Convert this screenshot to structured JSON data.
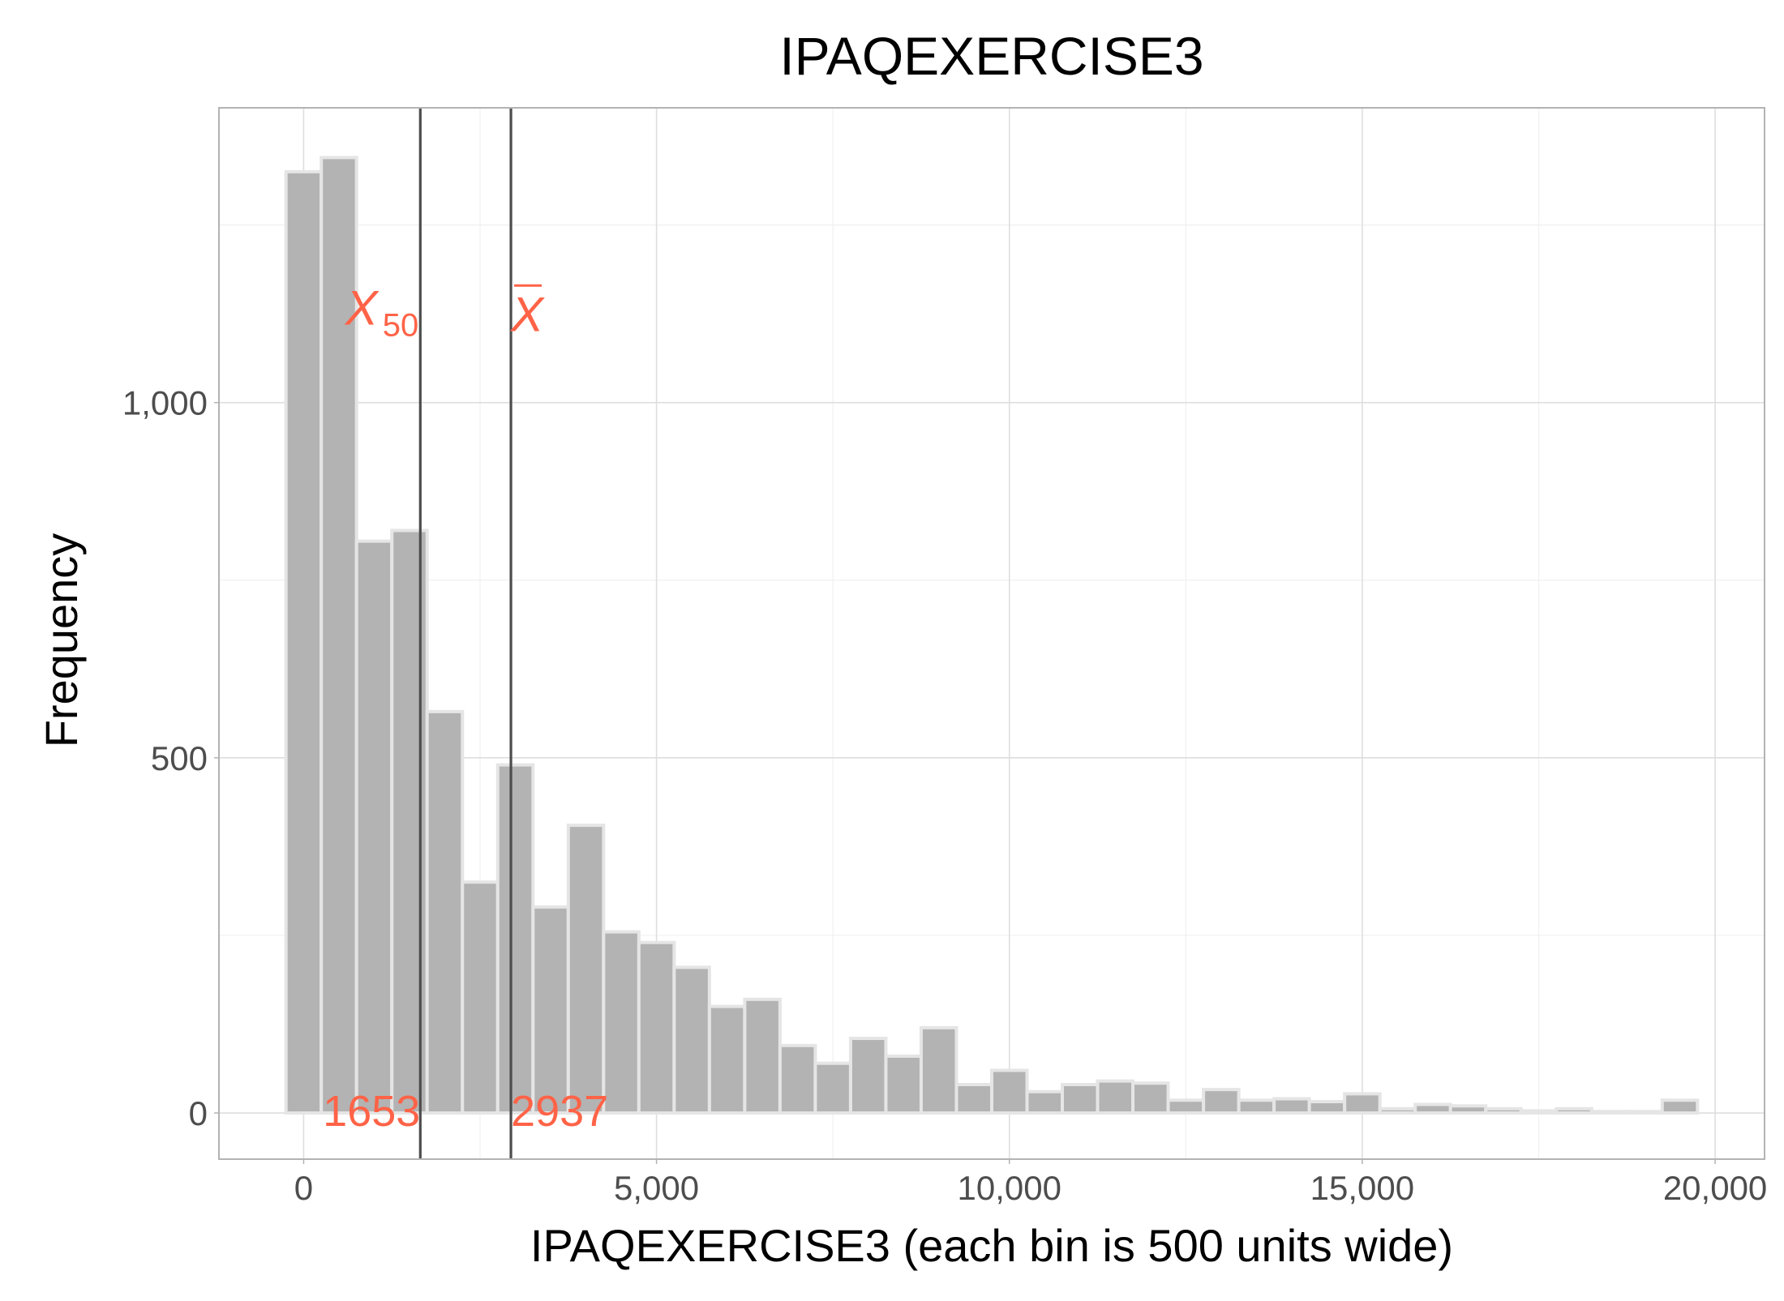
{
  "chart_data": {
    "type": "histogram",
    "title": "IPAQEXERCISE3",
    "xlabel": "IPAQEXERCISE3 (each bin is 500 units wide)",
    "ylabel": "Frequency",
    "bin_width": 500,
    "xlim": [
      -1200,
      20700
    ],
    "ylim": [
      -65,
      1415
    ],
    "x_ticks": [
      0,
      5000,
      10000,
      15000,
      20000
    ],
    "x_tick_labels": [
      "0",
      "5,000",
      "10,000",
      "15,000",
      "20,000"
    ],
    "y_ticks": [
      0,
      500,
      1000
    ],
    "y_tick_labels": [
      "0",
      "500",
      "1,000"
    ],
    "grid": true,
    "bin_centers": [
      0,
      500,
      1000,
      1500,
      2000,
      2500,
      3000,
      3500,
      4000,
      4500,
      5000,
      5500,
      6000,
      6500,
      7000,
      7500,
      8000,
      8500,
      9000,
      9500,
      10000,
      10500,
      11000,
      11500,
      12000,
      12500,
      13000,
      13500,
      14000,
      14500,
      15000,
      15500,
      16000,
      16500,
      17000,
      17500,
      18000,
      18500,
      19000,
      19500
    ],
    "values": [
      1325,
      1345,
      805,
      820,
      565,
      325,
      490,
      290,
      405,
      255,
      240,
      205,
      150,
      160,
      95,
      70,
      105,
      80,
      120,
      40,
      60,
      30,
      40,
      45,
      42,
      18,
      33,
      18,
      20,
      16,
      27,
      6,
      12,
      10,
      6,
      3,
      6,
      2,
      2,
      18
    ],
    "reference_lines": [
      {
        "stat": "median",
        "value": 1653,
        "label": "1653",
        "symbol": "X",
        "subscript": "50"
      },
      {
        "stat": "mean",
        "value": 2937,
        "label": "2937",
        "symbol": "X",
        "overline": true
      }
    ],
    "colors": {
      "bar_fill": "#b3b3b3",
      "bar_stroke": "#e5e5e5",
      "reference_line": "#4d4d4d",
      "annotation": "#ff6347",
      "grid_major": "#dedede",
      "grid_minor": "#f0f0f0",
      "panel_border": "#b3b3b3"
    }
  }
}
